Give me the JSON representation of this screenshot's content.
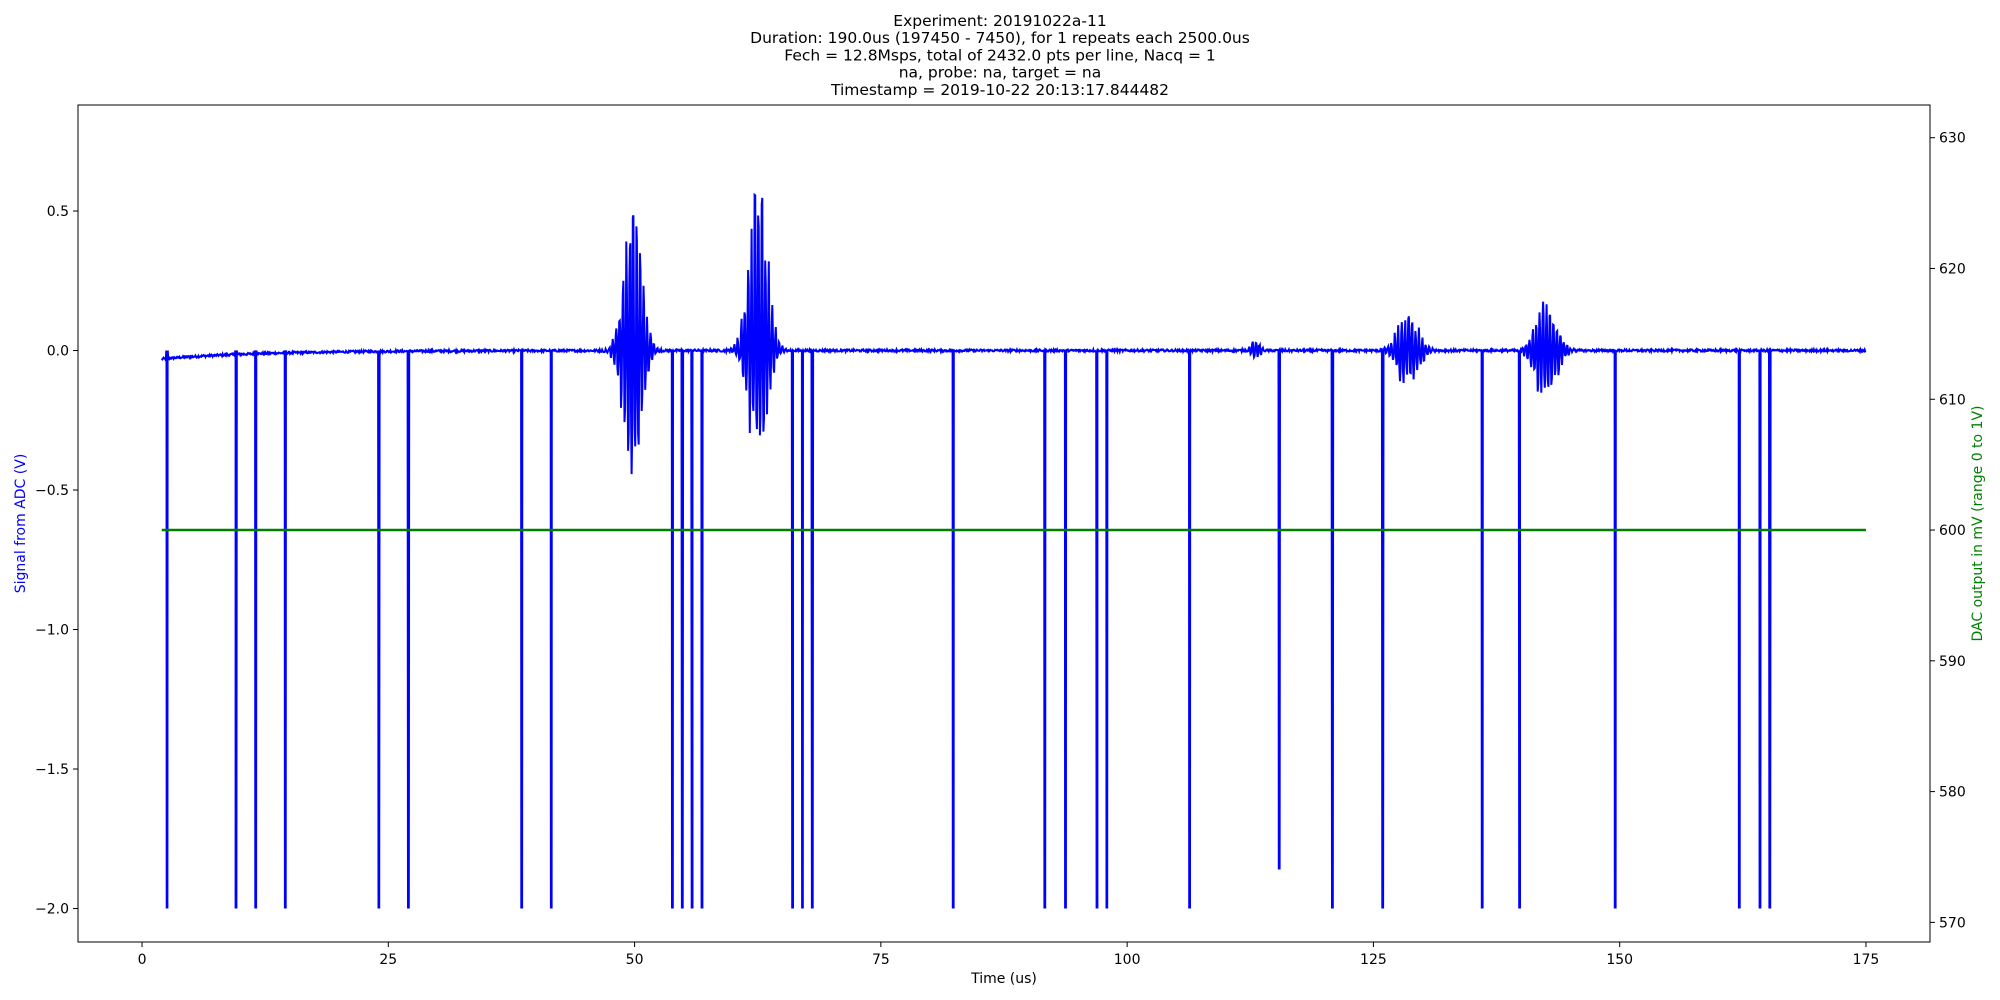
{
  "chart_data": {
    "type": "line",
    "title_lines": [
      "Experiment: 20191022a-11",
      "Duration: 190.0us (197450 - 7450), for 1 repeats each 2500.0us",
      "Fech = 12.8Msps, total of 2432.0 pts per line, Nacq = 1",
      "na, probe: na, target = na",
      "Timestamp = 2019-10-22 20:13:17.844482"
    ],
    "xlabel": "Time (us)",
    "ylabel_left": "Signal from ADC (V)",
    "ylabel_right": "DAC output in mV (range 0 to 1V)",
    "xlim": [
      -6.5,
      181.5
    ],
    "ylim_left": [
      -2.12,
      0.88
    ],
    "ylim_right": [
      568.5,
      632.5
    ],
    "x_ticks": [
      0,
      25,
      50,
      75,
      100,
      125,
      150,
      175
    ],
    "y_left_ticks": [
      0.5,
      0.0,
      -0.5,
      -1.0,
      -1.5,
      -2.0
    ],
    "y_left_tick_labels": [
      "0.5",
      "0.0",
      "−0.5",
      "−1.0",
      "−1.5",
      "−2.0"
    ],
    "y_right_ticks": [
      630,
      620,
      610,
      600,
      590,
      580,
      570
    ],
    "grid": false,
    "colors": {
      "signal": "#0000ff",
      "dac": "#008000",
      "axes": "#000000"
    },
    "series": [
      {
        "axis": "left",
        "color": "#0000ff",
        "baseline_start": -0.03,
        "x_range": [
          2.0,
          175.0
        ],
        "spikes": [
          {
            "x": 2.5,
            "y": -2.0
          },
          {
            "x": 9.5,
            "y": -2.0
          },
          {
            "x": 11.5,
            "y": -2.0
          },
          {
            "x": 14.5,
            "y": -2.0
          },
          {
            "x": 24.0,
            "y": -2.0
          },
          {
            "x": 27.0,
            "y": -2.0
          },
          {
            "x": 38.5,
            "y": -2.0
          },
          {
            "x": 41.5,
            "y": -2.0
          },
          {
            "x": 53.8,
            "y": -2.0
          },
          {
            "x": 54.8,
            "y": -2.0
          },
          {
            "x": 55.8,
            "y": -2.0
          },
          {
            "x": 56.8,
            "y": -2.0
          },
          {
            "x": 66.0,
            "y": -2.0
          },
          {
            "x": 67.0,
            "y": -2.0
          },
          {
            "x": 68.0,
            "y": -2.0
          },
          {
            "x": 82.3,
            "y": -2.0
          },
          {
            "x": 91.6,
            "y": -2.0
          },
          {
            "x": 93.7,
            "y": -2.0
          },
          {
            "x": 96.9,
            "y": -2.0
          },
          {
            "x": 97.9,
            "y": -2.0
          },
          {
            "x": 106.3,
            "y": -2.0
          },
          {
            "x": 115.4,
            "y": -1.86
          },
          {
            "x": 120.8,
            "y": -2.0
          },
          {
            "x": 125.9,
            "y": -2.0
          },
          {
            "x": 136.0,
            "y": -2.0
          },
          {
            "x": 139.8,
            "y": -2.0
          },
          {
            "x": 149.5,
            "y": -2.0
          },
          {
            "x": 162.1,
            "y": -2.0
          },
          {
            "x": 164.2,
            "y": -2.0
          },
          {
            "x": 165.2,
            "y": -2.0
          }
        ],
        "bursts": [
          {
            "center": 49.8,
            "width": 2.2,
            "amp_pos": 0.6,
            "amp_neg": -0.55,
            "env_width": 0.9
          },
          {
            "center": 62.5,
            "width": 2.4,
            "amp_pos": 0.75,
            "amp_neg": -0.45,
            "env_width": 0.9
          },
          {
            "center": 113.0,
            "width": 0.6,
            "amp_pos": 0.05,
            "amp_neg": -0.04,
            "env_width": 0.4
          },
          {
            "center": 128.5,
            "width": 2.2,
            "amp_pos": 0.17,
            "amp_neg": -0.15,
            "env_width": 1.0
          },
          {
            "center": 142.5,
            "width": 2.2,
            "amp_pos": 0.21,
            "amp_neg": -0.22,
            "env_width": 1.0
          }
        ]
      },
      {
        "axis": "right",
        "color": "#008000",
        "x": [
          2.0,
          175.0
        ],
        "y": [
          600.0,
          600.0
        ]
      }
    ]
  }
}
